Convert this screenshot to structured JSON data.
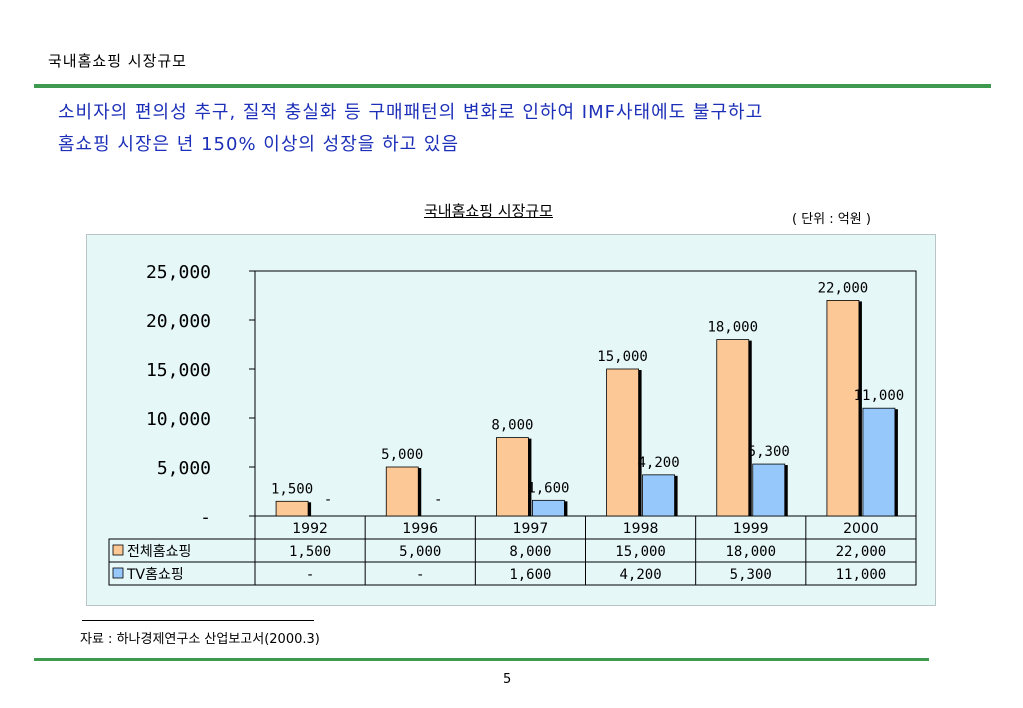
{
  "slide": {
    "title": "국내홈쇼핑 시장규모",
    "headline_line1": "소비자의 편의성 추구, 질적 충실화 등 구매패턴의 변화로 인하여 IMF사태에도 불구하고",
    "headline_line2": "홈쇼핑 시장은 년 150% 이상의 성장을 하고 있음",
    "source": "자료 : 하나경제연구소 산업보고서(2000.3)",
    "page_number": "5"
  },
  "chart_data": {
    "type": "bar",
    "title": "국내홈쇼핑 시장규모",
    "unit": "( 단위 : 억원 )",
    "categories": [
      "1992",
      "1996",
      "1997",
      "1998",
      "1999",
      "2000"
    ],
    "series": [
      {
        "name": "전체홈쇼핑",
        "values": [
          1500,
          5000,
          8000,
          15000,
          18000,
          22000
        ],
        "labels": [
          "1,500",
          "5,000",
          "8,000",
          "15,000",
          "18,000",
          "22,000"
        ],
        "color": "#fcc896"
      },
      {
        "name": "TV홈쇼핑",
        "values": [
          0,
          0,
          1600,
          4200,
          5300,
          11000
        ],
        "labels": [
          "-",
          "-",
          "1,600",
          "4,200",
          "5,300",
          "11,000"
        ],
        "color": "#96c8fc"
      }
    ],
    "ylim": [
      0,
      25000
    ],
    "yticks": [
      0,
      5000,
      10000,
      15000,
      20000,
      25000
    ],
    "ytick_labels": [
      "-",
      "5,000",
      "10,000",
      "15,000",
      "20,000",
      "25,000"
    ],
    "grid": false,
    "legend": "data-table"
  }
}
